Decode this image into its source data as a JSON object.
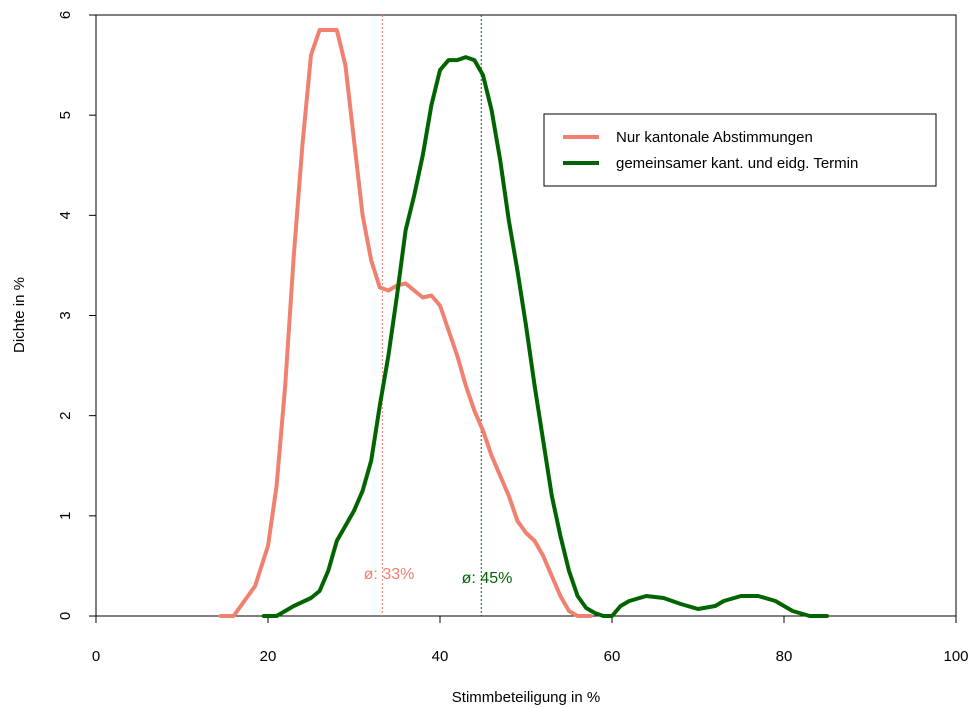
{
  "chart_data": {
    "type": "line",
    "xlabel": "Stimmbeteiligung in %",
    "ylabel": "Dichte in %",
    "xlim": [
      0,
      100
    ],
    "ylim": [
      0,
      6
    ],
    "xticks": [
      0,
      20,
      40,
      60,
      80,
      100
    ],
    "yticks": [
      0,
      1,
      2,
      3,
      4,
      5,
      6
    ],
    "grid": false,
    "legend_position": "top-right",
    "series": [
      {
        "name": "Nur kantonale Abstimmungen",
        "color": "#f08070",
        "mean": 33.3,
        "mean_label": "ø: 33%",
        "x": [
          14.5,
          16.0,
          17.0,
          18.5,
          20.0,
          21.0,
          22.0,
          23.0,
          24.0,
          25.0,
          26.0,
          27.0,
          28.0,
          29.0,
          30.0,
          31.0,
          32.0,
          33.0,
          34.0,
          35.0,
          36.0,
          37.0,
          38.0,
          39.0,
          40.0,
          41.0,
          42.0,
          43.0,
          44.0,
          45.0,
          46.0,
          47.0,
          48.0,
          49.0,
          50.0,
          51.0,
          52.0,
          53.0,
          54.0,
          55.0,
          56.0,
          57.5
        ],
        "values": [
          0.0,
          0.0,
          0.12,
          0.3,
          0.7,
          1.3,
          2.3,
          3.6,
          4.7,
          5.6,
          5.85,
          5.85,
          5.85,
          5.5,
          4.75,
          4.0,
          3.55,
          3.28,
          3.25,
          3.3,
          3.32,
          3.25,
          3.18,
          3.2,
          3.1,
          2.85,
          2.6,
          2.3,
          2.05,
          1.85,
          1.6,
          1.4,
          1.2,
          0.95,
          0.83,
          0.75,
          0.6,
          0.4,
          0.2,
          0.05,
          0.0,
          0.0
        ]
      },
      {
        "name": "gemeinsamer kant. und eidg. Termin",
        "color": "#006400",
        "mean": 44.8,
        "mean_label": "ø: 45%",
        "x": [
          19.5,
          21.0,
          22.0,
          23.0,
          24.0,
          25.0,
          26.0,
          27.0,
          28.0,
          29.0,
          30.0,
          31.0,
          32.0,
          33.0,
          34.0,
          35.0,
          36.0,
          37.0,
          38.0,
          39.0,
          40.0,
          41.0,
          42.0,
          43.0,
          44.0,
          45.0,
          46.0,
          47.0,
          48.0,
          49.0,
          50.0,
          51.0,
          52.0,
          53.0,
          54.0,
          55.0,
          56.0,
          57.0,
          58.0,
          59.0,
          60.0,
          61.0,
          62.0,
          64.0,
          66.0,
          68.0,
          70.0,
          72.0,
          73.0,
          75.0,
          77.0,
          79.0,
          81.0,
          83.0,
          85.0
        ],
        "values": [
          0.0,
          0.0,
          0.05,
          0.1,
          0.14,
          0.18,
          0.25,
          0.45,
          0.75,
          0.9,
          1.05,
          1.25,
          1.55,
          2.1,
          2.6,
          3.2,
          3.85,
          4.2,
          4.6,
          5.1,
          5.45,
          5.55,
          5.55,
          5.58,
          5.55,
          5.4,
          5.05,
          4.55,
          3.95,
          3.45,
          2.9,
          2.3,
          1.75,
          1.2,
          0.8,
          0.45,
          0.2,
          0.08,
          0.03,
          0.0,
          0.0,
          0.1,
          0.15,
          0.2,
          0.18,
          0.12,
          0.07,
          0.1,
          0.15,
          0.2,
          0.2,
          0.15,
          0.05,
          0.0,
          0.0
        ]
      }
    ]
  }
}
